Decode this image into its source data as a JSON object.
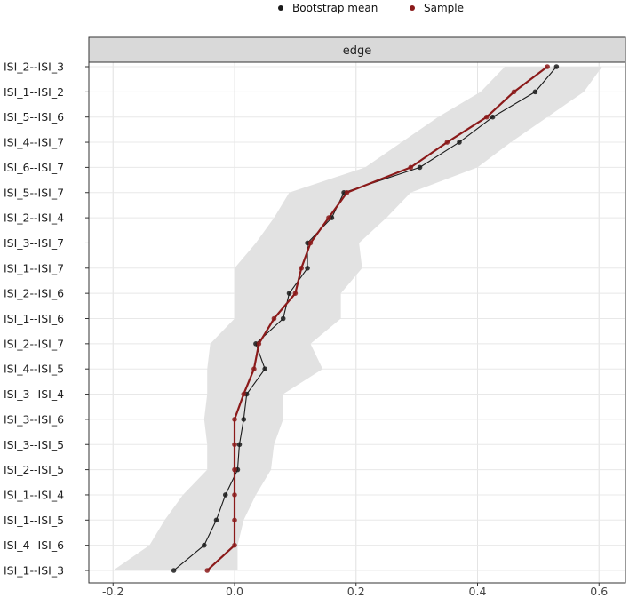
{
  "legend": {
    "entries": [
      {
        "label": "Bootstrap mean",
        "color": "#1a1a1a"
      },
      {
        "label": "Sample",
        "color": "#8b1a1a"
      }
    ]
  },
  "chart_data": {
    "type": "line",
    "orientation": "horizontal",
    "facet_label": "edge",
    "title": "",
    "xlabel": "",
    "ylabel": "",
    "xlim": [
      -0.25,
      0.63
    ],
    "x_ticks": [
      -0.2,
      0.0,
      0.2,
      0.4,
      0.6
    ],
    "x_tick_labels": [
      "-0.2",
      "0.0",
      "0.2",
      "0.4",
      "0.6"
    ],
    "grid": true,
    "legend_position": "top",
    "categories": [
      "ISI_2--ISI_3",
      "ISI_1--ISI_2",
      "ISI_5--ISI_6",
      "ISI_4--ISI_7",
      "ISI_6--ISI_7",
      "ISI_5--ISI_7",
      "ISI_2--ISI_4",
      "ISI_3--ISI_7",
      "ISI_1--ISI_7",
      "ISI_2--ISI_6",
      "ISI_1--ISI_6",
      "ISI_2--ISI_7",
      "ISI_4--ISI_5",
      "ISI_3--ISI_4",
      "ISI_3--ISI_6",
      "ISI_3--ISI_5",
      "ISI_2--ISI_5",
      "ISI_1--ISI_4",
      "ISI_1--ISI_5",
      "ISI_4--ISI_6",
      "ISI_1--ISI_3"
    ],
    "series": [
      {
        "name": "Bootstrap mean",
        "color": "#1a1a1a",
        "values": [
          0.53,
          0.495,
          0.425,
          0.37,
          0.305,
          0.18,
          0.16,
          0.12,
          0.12,
          0.09,
          0.08,
          0.035,
          0.05,
          0.02,
          0.015,
          0.008,
          0.005,
          -0.015,
          -0.03,
          -0.05,
          -0.1
        ]
      },
      {
        "name": "Sample",
        "color": "#8b1a1a",
        "values": [
          0.515,
          0.46,
          0.415,
          0.35,
          0.29,
          0.185,
          0.155,
          0.125,
          0.11,
          0.1,
          0.065,
          0.04,
          0.032,
          0.015,
          0.0,
          0.0,
          0.0,
          0.0,
          0.0,
          0.0,
          -0.045
        ]
      }
    ],
    "ci": {
      "lower": [
        0.445,
        0.405,
        0.335,
        0.275,
        0.215,
        0.09,
        0.065,
        0.035,
        0.0,
        0.0,
        0.0,
        -0.04,
        -0.045,
        -0.045,
        -0.05,
        -0.045,
        -0.045,
        -0.085,
        -0.115,
        -0.14,
        -0.2
      ],
      "upper": [
        0.605,
        0.575,
        0.515,
        0.455,
        0.4,
        0.29,
        0.25,
        0.205,
        0.21,
        0.175,
        0.175,
        0.125,
        0.145,
        0.08,
        0.08,
        0.065,
        0.06,
        0.035,
        0.015,
        0.005,
        0.005
      ],
      "color": "#e2e2e2"
    }
  }
}
